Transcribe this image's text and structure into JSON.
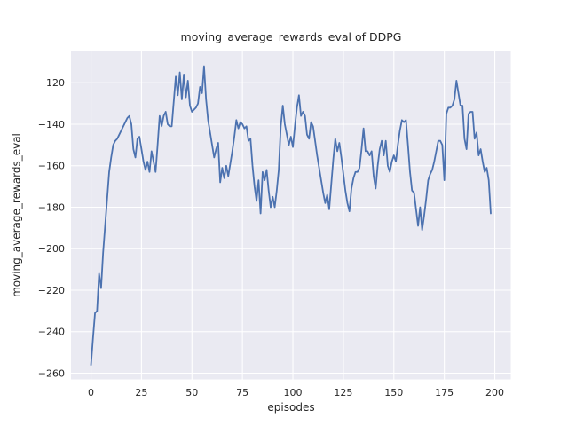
{
  "figure": {
    "background": "#ffffff"
  },
  "chart_data": {
    "type": "line",
    "title": "moving_average_rewards_eval of DDPG",
    "xlabel": "episodes",
    "ylabel": "moving_average_rewards_eval",
    "grid": true,
    "legend_position": "none",
    "x_ticks": [
      0,
      25,
      50,
      75,
      100,
      125,
      150,
      175,
      200
    ],
    "y_ticks": [
      -260,
      -240,
      -220,
      -200,
      -180,
      -160,
      -140,
      -120
    ],
    "xlim": [
      -9.9,
      207.9
    ],
    "ylim": [
      -263,
      -104.7
    ],
    "style": {
      "plot_background": "#EAEAF2",
      "grid_color": "#FFFFFF",
      "line_color": "#4C72B0",
      "text_color": "#262626"
    },
    "series": [
      {
        "name": "moving_average_rewards_eval",
        "color": "#4C72B0",
        "x_start": 0,
        "x_step": 1,
        "values": [
          -256,
          -243,
          -231,
          -230,
          -212,
          -219,
          -202,
          -189,
          -176,
          -163,
          -156,
          -150,
          -148,
          -147,
          -145,
          -143,
          -141,
          -139,
          -137,
          -136,
          -140,
          -152,
          -156,
          -147,
          -146,
          -152,
          -158,
          -162,
          -158,
          -163,
          -153,
          -158,
          -163,
          -150,
          -136,
          -141,
          -136,
          -134,
          -140,
          -141,
          -141,
          -129,
          -117,
          -126,
          -115,
          -128,
          -116,
          -127,
          -119,
          -131,
          -134,
          -133,
          -132,
          -130,
          -122,
          -125,
          -112,
          -128,
          -138,
          -144,
          -150,
          -156,
          -152,
          -149,
          -168,
          -161,
          -166,
          -160,
          -165,
          -159,
          -153,
          -146,
          -138,
          -142,
          -139,
          -140,
          -142,
          -141,
          -148,
          -147,
          -160,
          -170,
          -177,
          -167,
          -183,
          -163,
          -167,
          -162,
          -172,
          -180,
          -175,
          -180,
          -172,
          -162,
          -141,
          -131,
          -140,
          -145,
          -150,
          -146,
          -151,
          -141,
          -132,
          -126,
          -136,
          -134,
          -136,
          -145,
          -147,
          -139,
          -141,
          -148,
          -155,
          -161,
          -167,
          -173,
          -178,
          -174,
          -181,
          -169,
          -157,
          -147,
          -153,
          -149,
          -156,
          -164,
          -172,
          -178,
          -182,
          -171,
          -166,
          -163,
          -163,
          -161,
          -152,
          -142,
          -153,
          -153,
          -155,
          -153,
          -165,
          -171,
          -160,
          -152,
          -148,
          -155,
          -148,
          -160,
          -163,
          -158,
          -155,
          -158,
          -150,
          -143,
          -138,
          -139,
          -138,
          -150,
          -163,
          -172,
          -173,
          -181,
          -189,
          -180,
          -191,
          -184,
          -176,
          -167,
          -164,
          -162,
          -158,
          -153,
          -148,
          -148,
          -150,
          -167,
          -135,
          -132,
          -132,
          -131,
          -128,
          -119,
          -125,
          -131,
          -131,
          -147,
          -152,
          -135,
          -134,
          -134,
          -147,
          -144,
          -155,
          -152,
          -158,
          -163,
          -161,
          -167,
          -183
        ]
      }
    ]
  }
}
